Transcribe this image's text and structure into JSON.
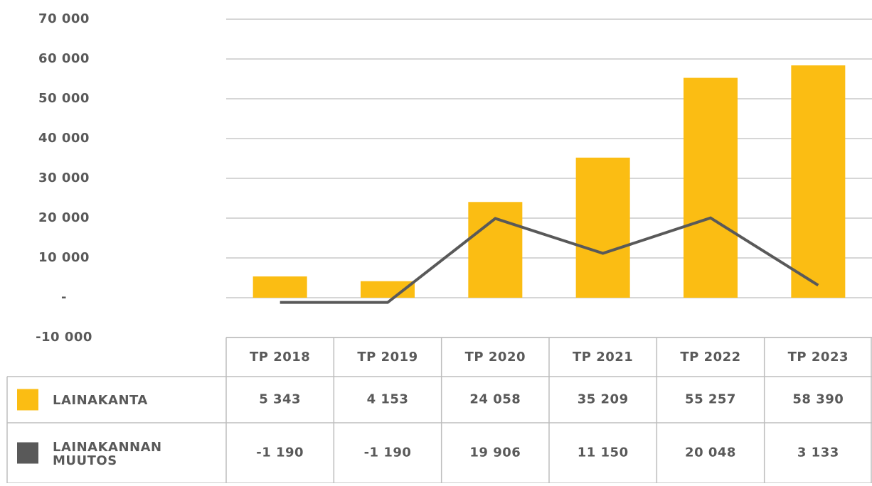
{
  "chart_data": {
    "type": "bar-line",
    "categories": [
      "TP 2018",
      "TP 2019",
      "TP 2020",
      "TP 2021",
      "TP 2022",
      "TP 2023"
    ],
    "series": [
      {
        "name": "LAINAKANTA",
        "color": "#fbbd13",
        "type": "bar",
        "values": [
          5343,
          4153,
          24058,
          35209,
          55257,
          58390
        ],
        "value_labels": [
          "5 343",
          "4 153",
          "24 058",
          "35 209",
          "55 257",
          "58 390"
        ]
      },
      {
        "name": "LAINAKANNAN MUUTOS",
        "color": "#595959",
        "type": "line",
        "values": [
          -1190,
          -1190,
          19906,
          11150,
          20048,
          3133
        ],
        "value_labels": [
          "-1 190",
          "-1 190",
          "19 906",
          "11 150",
          "20 048",
          "3 133"
        ]
      }
    ],
    "ylim": [
      -10000,
      70000
    ],
    "yticks": [
      {
        "value": -10000,
        "label": "-10 000"
      },
      {
        "value": 0,
        "label": "-"
      },
      {
        "value": 10000,
        "label": "10 000"
      },
      {
        "value": 20000,
        "label": "20 000"
      },
      {
        "value": 30000,
        "label": "30 000"
      },
      {
        "value": 40000,
        "label": "40 000"
      },
      {
        "value": 50000,
        "label": "50 000"
      },
      {
        "value": 60000,
        "label": "60 000"
      },
      {
        "value": 70000,
        "label": "70 000"
      }
    ],
    "grid": true
  }
}
